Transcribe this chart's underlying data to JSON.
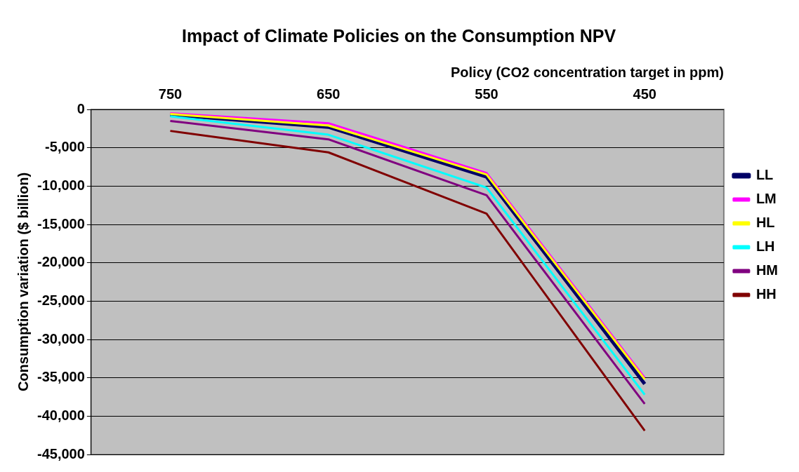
{
  "chart_data": {
    "type": "line",
    "title": "Impact of Climate Policies on the Consumption NPV",
    "xlabel": "Policy (CO2 concentration target in ppm)",
    "ylabel": "Consumption variation ($ billion)",
    "categories": [
      "750",
      "650",
      "550",
      "450"
    ],
    "series": [
      {
        "name": "LL",
        "color": "#000066",
        "values": [
          -700,
          -2300,
          -8800,
          -35800
        ]
      },
      {
        "name": "LM",
        "color": "#ff00ff",
        "values": [
          -500,
          -1800,
          -8300,
          -35000
        ]
      },
      {
        "name": "HL",
        "color": "#ffff00",
        "values": [
          -600,
          -2100,
          -8500,
          -35200
        ]
      },
      {
        "name": "LH",
        "color": "#00ffff",
        "values": [
          -900,
          -3300,
          -10200,
          -37200
        ]
      },
      {
        "name": "HM",
        "color": "#800080",
        "values": [
          -1500,
          -3900,
          -11200,
          -38400
        ]
      },
      {
        "name": "HH",
        "color": "#800000",
        "values": [
          -2800,
          -5600,
          -13600,
          -41900
        ]
      }
    ],
    "ylim": [
      -45000,
      0
    ],
    "yticks": [
      {
        "value": -45000,
        "label": "-45,000"
      },
      {
        "value": -40000,
        "label": "-40,000"
      },
      {
        "value": -35000,
        "label": "-35,000"
      },
      {
        "value": -30000,
        "label": "-30,000"
      },
      {
        "value": -25000,
        "label": "-25,000"
      },
      {
        "value": -20000,
        "label": "-20,000"
      },
      {
        "value": -15000,
        "label": "-15,000"
      },
      {
        "value": -10000,
        "label": "-10,000"
      },
      {
        "value": -5000,
        "label": "-5,000"
      },
      0
    ],
    "grid": "y",
    "legend": "right",
    "marker": "none",
    "line_style": "solid"
  }
}
